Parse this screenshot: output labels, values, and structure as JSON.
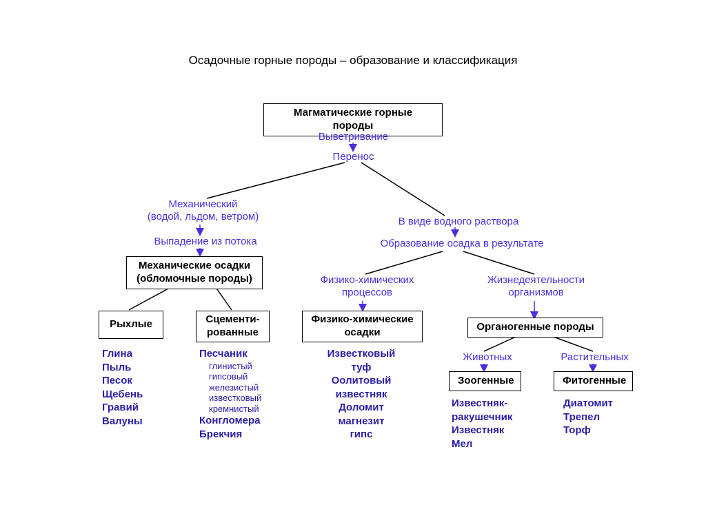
{
  "title": "Осадочные горные породы – образование и классификация",
  "boxes": {
    "root": "Магматические горные породы",
    "mechOsadki_l1": "Механические осадки",
    "mechOsadki_l2": "(обломочные породы)",
    "ryhlye": "Рыхлые",
    "scementiro_l1": "Сцементи-",
    "scementiro_l2": "рованные",
    "fhOsadki_l1": "Физико-химические",
    "fhOsadki_l2": "осадки",
    "organog": "Органогенные породы",
    "zoog": "Зоогенные",
    "fitog": "Фитогенные"
  },
  "labels": {
    "vyvet": "Выветривание",
    "perenos": "Перенос",
    "mech_l1": "Механический",
    "mech_l2": "(водой, льдом, ветром)",
    "vypad": "Выпадение из потока",
    "vodrast": "В виде водного раствора",
    "obrazos": "Образование осадка в результате",
    "fhproc_l1": "Физико-химических",
    "fhproc_l2": "процессов",
    "zhizn_l1": "Жизнедеятельности",
    "zhizn_l2": "организмов",
    "zhivot": "Животных",
    "rastit": "Растительных"
  },
  "examples": {
    "ryhlye": [
      "Глина",
      "Пыль",
      "Песок",
      "Щебень",
      "Гравий",
      "Валуны"
    ],
    "scementiro_head": "Песчаник",
    "scementiro_sub": [
      "глинистый",
      "гипсовый",
      "железистый",
      "известковый",
      "кремнистый"
    ],
    "scementiro_tail": [
      "Конгломера",
      "Брекчия"
    ],
    "fh": [
      "Известковый",
      "туф",
      "Оолитовый",
      "известняк",
      "Доломит",
      "магнезит",
      "гипс"
    ],
    "zoog": [
      "Известняк-",
      "ракушечник",
      "Известняк",
      "Мел"
    ],
    "fitog": [
      "Диатомит",
      "Трепел",
      "Торф"
    ]
  }
}
